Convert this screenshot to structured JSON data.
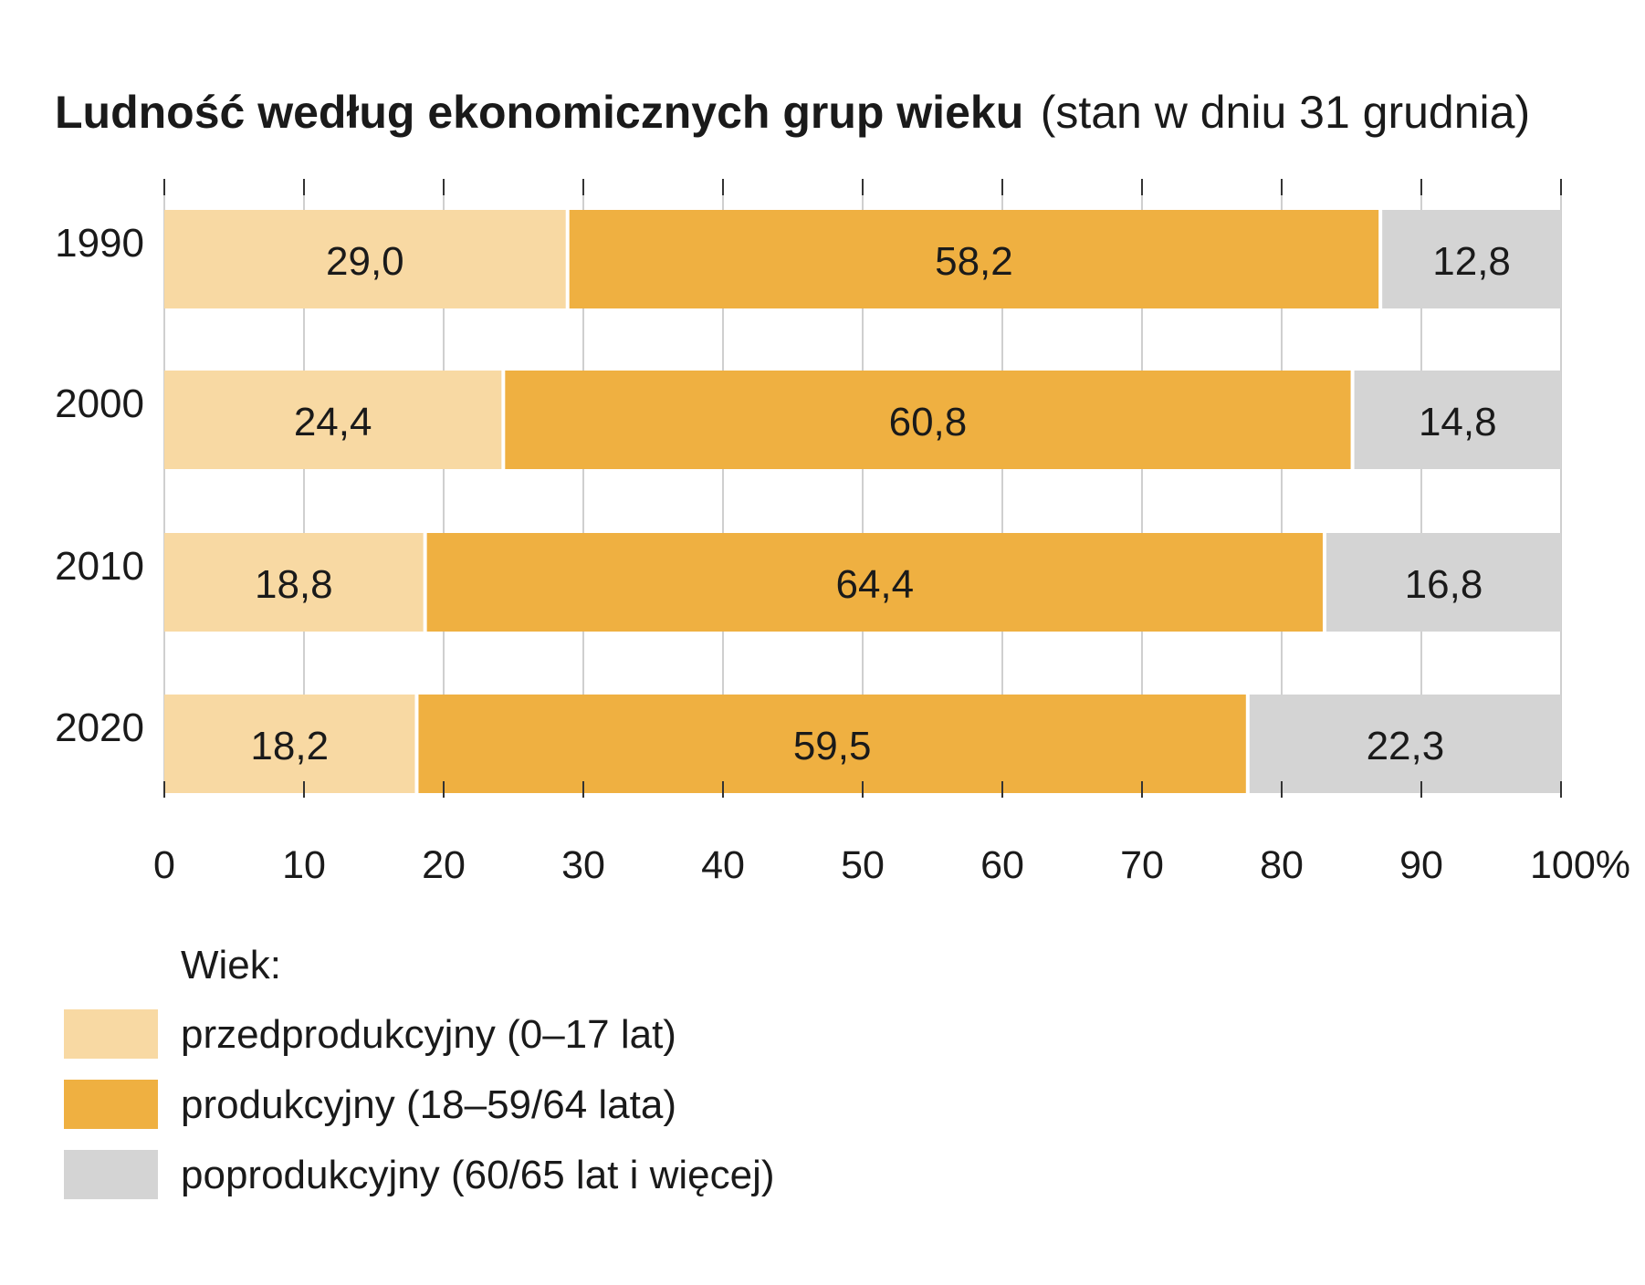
{
  "chart_data": {
    "type": "bar",
    "orientation": "horizontal",
    "stacked": true,
    "title": "Ludność według ekonomicznych grup wieku",
    "subtitle": "(stan w dniu 31 grudnia)",
    "categories": [
      "1990",
      "2000",
      "2010",
      "2020"
    ],
    "series": [
      {
        "name": "przedprodukcyjny (0–17 lat)",
        "color": "#f8d9a3",
        "values": [
          29.0,
          24.4,
          18.8,
          18.2
        ],
        "labels": [
          "29,0",
          "24,4",
          "18,8",
          "18,2"
        ]
      },
      {
        "name": "produkcyjny (18–59/64 lata)",
        "color": "#efb041",
        "values": [
          58.2,
          60.8,
          64.4,
          59.5
        ],
        "labels": [
          "58,2",
          "60,8",
          "64,4",
          "59,5"
        ]
      },
      {
        "name": "poprodukcyjny (60/65 lat i więcej)",
        "color": "#d4d4d4",
        "values": [
          12.8,
          14.8,
          16.8,
          22.3
        ],
        "labels": [
          "12,8",
          "14,8",
          "16,8",
          "22,3"
        ]
      }
    ],
    "xlim": [
      0,
      100
    ],
    "xticks": [
      0,
      10,
      20,
      30,
      40,
      50,
      60,
      70,
      80,
      90,
      100
    ],
    "xtick_labels": [
      "0",
      "10",
      "20",
      "30",
      "40",
      "50",
      "60",
      "70",
      "80",
      "90",
      "100%"
    ],
    "grid": true,
    "legend": {
      "title": "Wiek:",
      "position": "bottom-left"
    }
  }
}
